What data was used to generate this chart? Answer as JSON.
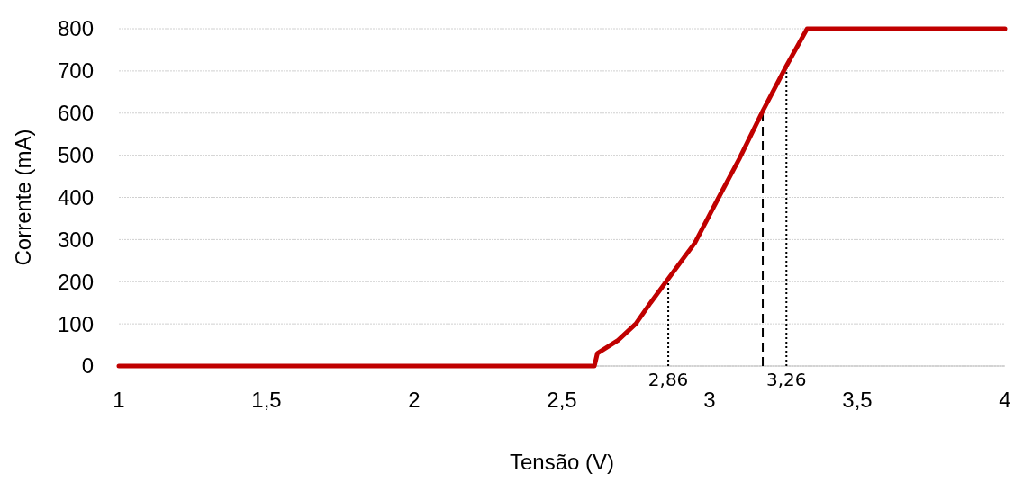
{
  "chart_data": {
    "type": "line",
    "xlabel": "Tensão (V)",
    "ylabel": "Corrente (mA)",
    "series": [
      {
        "color": "#c00000",
        "x": [
          1,
          2.61,
          2.62,
          2.69,
          2.75,
          2.8,
          2.86,
          2.95,
          3.03,
          3.1,
          3.18,
          3.26,
          3.3,
          3.33,
          4
        ],
        "values": [
          0,
          0,
          30,
          61,
          100,
          150,
          207,
          292,
          399,
          491,
          605,
          712,
          762,
          800,
          800
        ]
      }
    ],
    "xlim": [
      1,
      4
    ],
    "xticks": [
      {
        "value": 1,
        "label": "1"
      },
      {
        "value": 1.5,
        "label": "1,5"
      },
      {
        "value": 2,
        "label": "2"
      },
      {
        "value": 2.5,
        "label": "2,5"
      },
      {
        "value": 3,
        "label": "3"
      },
      {
        "value": 3.5,
        "label": "3,5"
      },
      {
        "value": 4,
        "label": "4"
      }
    ],
    "ylim": [
      0,
      800
    ],
    "yticks": [
      0,
      100,
      200,
      300,
      400,
      500,
      600,
      700,
      800
    ],
    "grid": "y",
    "marker": "none",
    "line_style": "solid",
    "ref_lines": [
      {
        "axis": "x",
        "value": 2.86,
        "label": "2,86",
        "color": "#000000",
        "line_style": "dotted"
      },
      {
        "axis": "x",
        "value": 3.18,
        "color": "#000000",
        "line_style": "dashed"
      },
      {
        "axis": "x",
        "value": 3.26,
        "label": "3,26",
        "color": "#000000",
        "line_style": "dotted"
      }
    ]
  }
}
